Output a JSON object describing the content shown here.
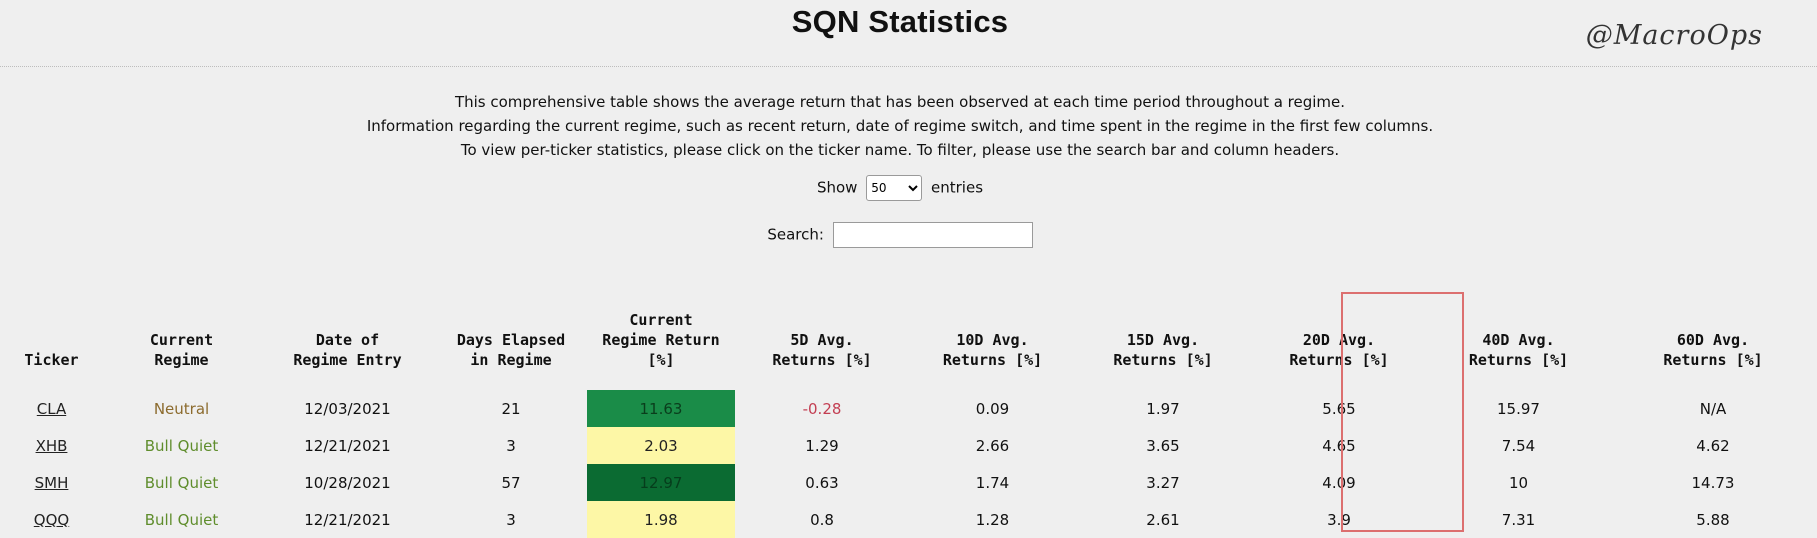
{
  "header": {
    "title": "SQN Statistics",
    "brand": "@MacroOps"
  },
  "description": [
    "This comprehensive table shows the average return that has been observed at each time period throughout a regime.",
    "Information regarding the current regime, such as recent return, date of regime switch, and time spent in the regime in the first few columns.",
    "To view per-ticker statistics, please click on the ticker name. To filter, please use the search bar and column headers."
  ],
  "length_control": {
    "show_label": "Show",
    "selected": "50",
    "entries_label": "entries"
  },
  "search": {
    "label": "Search:",
    "value": ""
  },
  "colors": {
    "neutral_regime": "#8c6b2e",
    "bull_quiet_regime": "#5f8d2c",
    "negative_value": "#c33e52",
    "highlight_box": "#dc6f6f",
    "return_high": "#1a8c48",
    "return_very_high": "#0b6b32",
    "return_low": "#fdf7a6"
  },
  "table": {
    "columns": [
      {
        "key": "ticker",
        "label": "Ticker"
      },
      {
        "key": "regime",
        "label": "Current\nRegime"
      },
      {
        "key": "entry_date",
        "label": "Date of\nRegime Entry"
      },
      {
        "key": "days",
        "label": "Days Elapsed\nin Regime"
      },
      {
        "key": "regime_return",
        "label": "Current\nRegime Return\n[%]"
      },
      {
        "key": "d5",
        "label": "5D Avg.\nReturns [%]"
      },
      {
        "key": "d10",
        "label": "10D Avg.\nReturns [%]"
      },
      {
        "key": "d15",
        "label": "15D Avg.\nReturns [%]"
      },
      {
        "key": "d20",
        "label": "20D Avg.\nReturns [%]"
      },
      {
        "key": "d40",
        "label": "40D Avg.\nReturns [%]"
      },
      {
        "key": "d60",
        "label": "60D Avg.\nReturns [%]"
      }
    ],
    "highlighted_column": "20D Avg. Returns [%]",
    "rows": [
      {
        "ticker": "CLA",
        "regime": "Neutral",
        "entry_date": "12/03/2021",
        "days": "21",
        "regime_return": "11.63",
        "d5": "-0.28",
        "d10": "0.09",
        "d15": "1.97",
        "d20": "5.65",
        "d40": "15.97",
        "d60": "N/A"
      },
      {
        "ticker": "XHB",
        "regime": "Bull Quiet",
        "entry_date": "12/21/2021",
        "days": "3",
        "regime_return": "2.03",
        "d5": "1.29",
        "d10": "2.66",
        "d15": "3.65",
        "d20": "4.65",
        "d40": "7.54",
        "d60": "4.62"
      },
      {
        "ticker": "SMH",
        "regime": "Bull Quiet",
        "entry_date": "10/28/2021",
        "days": "57",
        "regime_return": "12.97",
        "d5": "0.63",
        "d10": "1.74",
        "d15": "3.27",
        "d20": "4.09",
        "d40": "10",
        "d60": "14.73"
      },
      {
        "ticker": "QQQ",
        "regime": "Bull Quiet",
        "entry_date": "12/21/2021",
        "days": "3",
        "regime_return": "1.98",
        "d5": "0.8",
        "d10": "1.28",
        "d15": "2.61",
        "d20": "3.9",
        "d40": "7.31",
        "d60": "5.88"
      }
    ]
  }
}
